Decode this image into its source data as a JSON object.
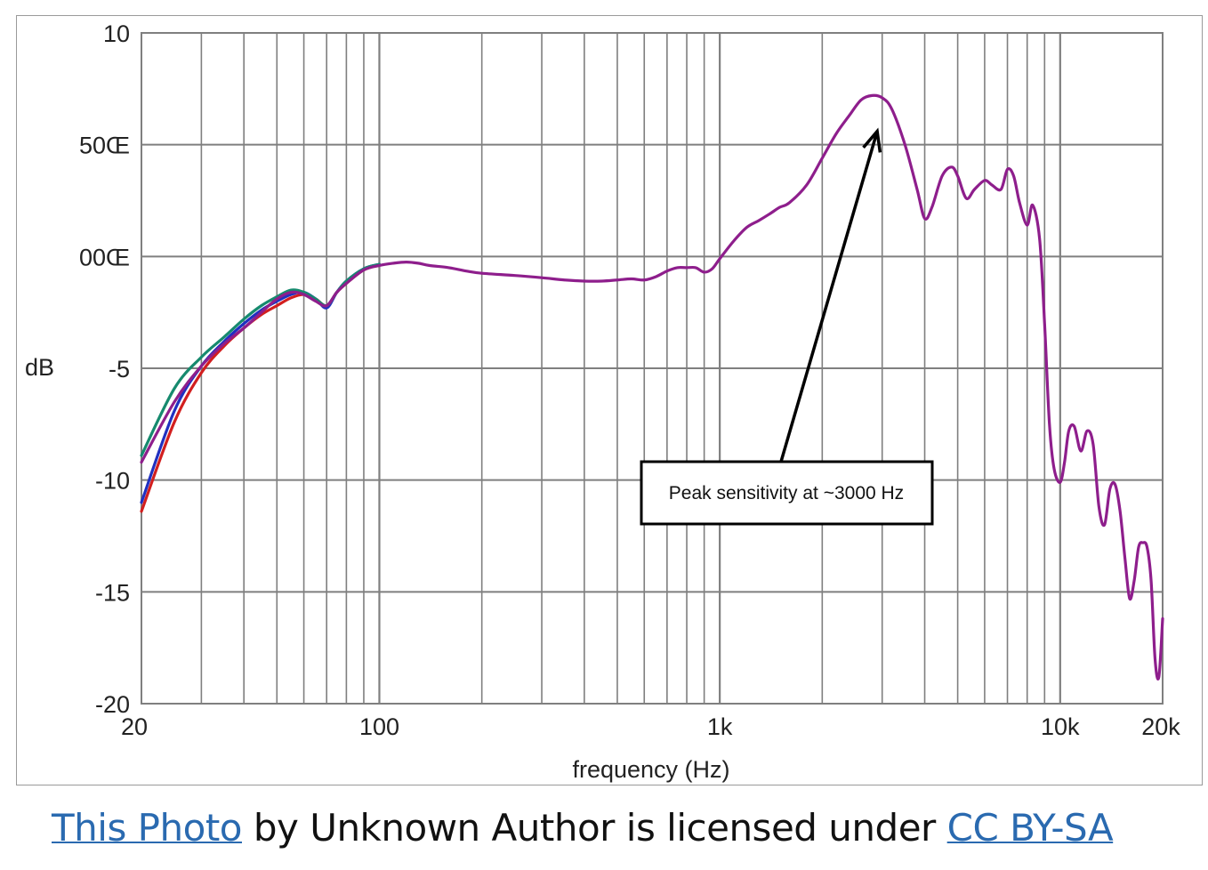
{
  "attribution": {
    "link_text": "This Photo",
    "middle_text": " by Unknown Author is licensed under ",
    "license_text": "CC BY-SA"
  },
  "colors": {
    "grid": "#7f7f7f",
    "link": "#2a6ab0",
    "series": [
      "#8e1e8c",
      "#d21f1f",
      "#2030c0",
      "#168a6e"
    ]
  },
  "chart_data": {
    "type": "line",
    "title": "",
    "xlabel": "frequency (Hz)",
    "ylabel": "dB",
    "x_scale": "log",
    "xlim": [
      20,
      20000
    ],
    "ylim": [
      -20,
      10
    ],
    "grid": true,
    "x_tick_values": [
      20,
      100,
      1000,
      10000,
      20000
    ],
    "x_tick_labels": [
      "20",
      "100",
      "1k",
      "10k",
      "20k"
    ],
    "y_tick_values": [
      10,
      5,
      0,
      -5,
      -10,
      -15,
      -20
    ],
    "y_tick_labels": [
      "10",
      "50Œ",
      "00Œ",
      "-5",
      "-10",
      "-15",
      "-20"
    ],
    "annotation": {
      "text": "Peak sensitivity at ~3000 Hz",
      "x": 2900,
      "y": 5.6
    },
    "series": [
      {
        "color": "#8e1e8c",
        "x": [
          20,
          25,
          30,
          35,
          40,
          45,
          50,
          55,
          60,
          65,
          70,
          75,
          80,
          90,
          100,
          110,
          120,
          130,
          140,
          160,
          180,
          200,
          250,
          300,
          350,
          400,
          450,
          500,
          550,
          600,
          650,
          700,
          750,
          800,
          850,
          900,
          950,
          1000,
          1100,
          1200,
          1300,
          1400,
          1500,
          1600,
          1800,
          2000,
          2200,
          2400,
          2600,
          2800,
          3000,
          3200,
          3500,
          3800,
          4000,
          4200,
          4500,
          4800,
          5000,
          5300,
          5600,
          6000,
          6300,
          6700,
          7000,
          7300,
          7600,
          8000,
          8300,
          8700,
          9000,
          9300,
          9600,
          10000,
          10300,
          10600,
          11000,
          11500,
          12000,
          12500,
          13000,
          13500,
          14000,
          14500,
          15000,
          15500,
          16000,
          16500,
          17000,
          17500,
          18000,
          18500,
          19000,
          19500,
          20000
        ],
        "y": [
          -9.2,
          -6.5,
          -4.9,
          -3.9,
          -3.2,
          -2.5,
          -1.9,
          -1.6,
          -1.7,
          -2.0,
          -2.2,
          -1.6,
          -1.2,
          -0.6,
          -0.4,
          -0.3,
          -0.25,
          -0.3,
          -0.4,
          -0.5,
          -0.65,
          -0.75,
          -0.85,
          -0.95,
          -1.05,
          -1.1,
          -1.1,
          -1.05,
          -1.0,
          -1.05,
          -0.9,
          -0.65,
          -0.5,
          -0.5,
          -0.5,
          -0.7,
          -0.55,
          -0.1,
          0.7,
          1.3,
          1.6,
          1.9,
          2.2,
          2.4,
          3.2,
          4.4,
          5.5,
          6.3,
          7.0,
          7.2,
          7.1,
          6.6,
          5.0,
          3.0,
          1.7,
          2.2,
          3.6,
          4.0,
          3.6,
          2.6,
          3.0,
          3.4,
          3.2,
          3.0,
          3.9,
          3.6,
          2.4,
          1.4,
          2.3,
          0.8,
          -3.0,
          -7.5,
          -9.5,
          -10.1,
          -9.2,
          -7.8,
          -7.6,
          -8.7,
          -7.8,
          -8.4,
          -11.2,
          -12.0,
          -10.4,
          -10.2,
          -11.4,
          -13.5,
          -15.3,
          -14.5,
          -13.0,
          -12.8,
          -13.0,
          -14.5,
          -18.0,
          -18.8,
          -16.2
        ]
      },
      {
        "color": "#d21f1f",
        "x": [
          20,
          25,
          30,
          35,
          40,
          45,
          50,
          55,
          60,
          65,
          70,
          75,
          80,
          90,
          100
        ],
        "y": [
          -11.4,
          -7.4,
          -5.2,
          -4.0,
          -3.2,
          -2.6,
          -2.2,
          -1.85,
          -1.7,
          -1.9,
          -2.2,
          -1.6,
          -1.2,
          -0.6,
          -0.4
        ]
      },
      {
        "color": "#2030c0",
        "x": [
          20,
          25,
          30,
          35,
          40,
          45,
          50,
          55,
          60,
          65,
          70,
          75,
          80,
          90,
          100
        ],
        "y": [
          -11.0,
          -6.9,
          -4.9,
          -3.8,
          -3.0,
          -2.4,
          -2.0,
          -1.7,
          -1.6,
          -1.9,
          -2.3,
          -1.6,
          -1.1,
          -0.55,
          -0.35
        ]
      },
      {
        "color": "#168a6e",
        "x": [
          20,
          25,
          30,
          35,
          40,
          45,
          50,
          55,
          60,
          65,
          70,
          75,
          80,
          90,
          100
        ],
        "y": [
          -8.9,
          -5.9,
          -4.5,
          -3.6,
          -2.8,
          -2.2,
          -1.8,
          -1.5,
          -1.6,
          -1.9,
          -2.2,
          -1.6,
          -1.1,
          -0.55,
          -0.35
        ]
      }
    ]
  }
}
